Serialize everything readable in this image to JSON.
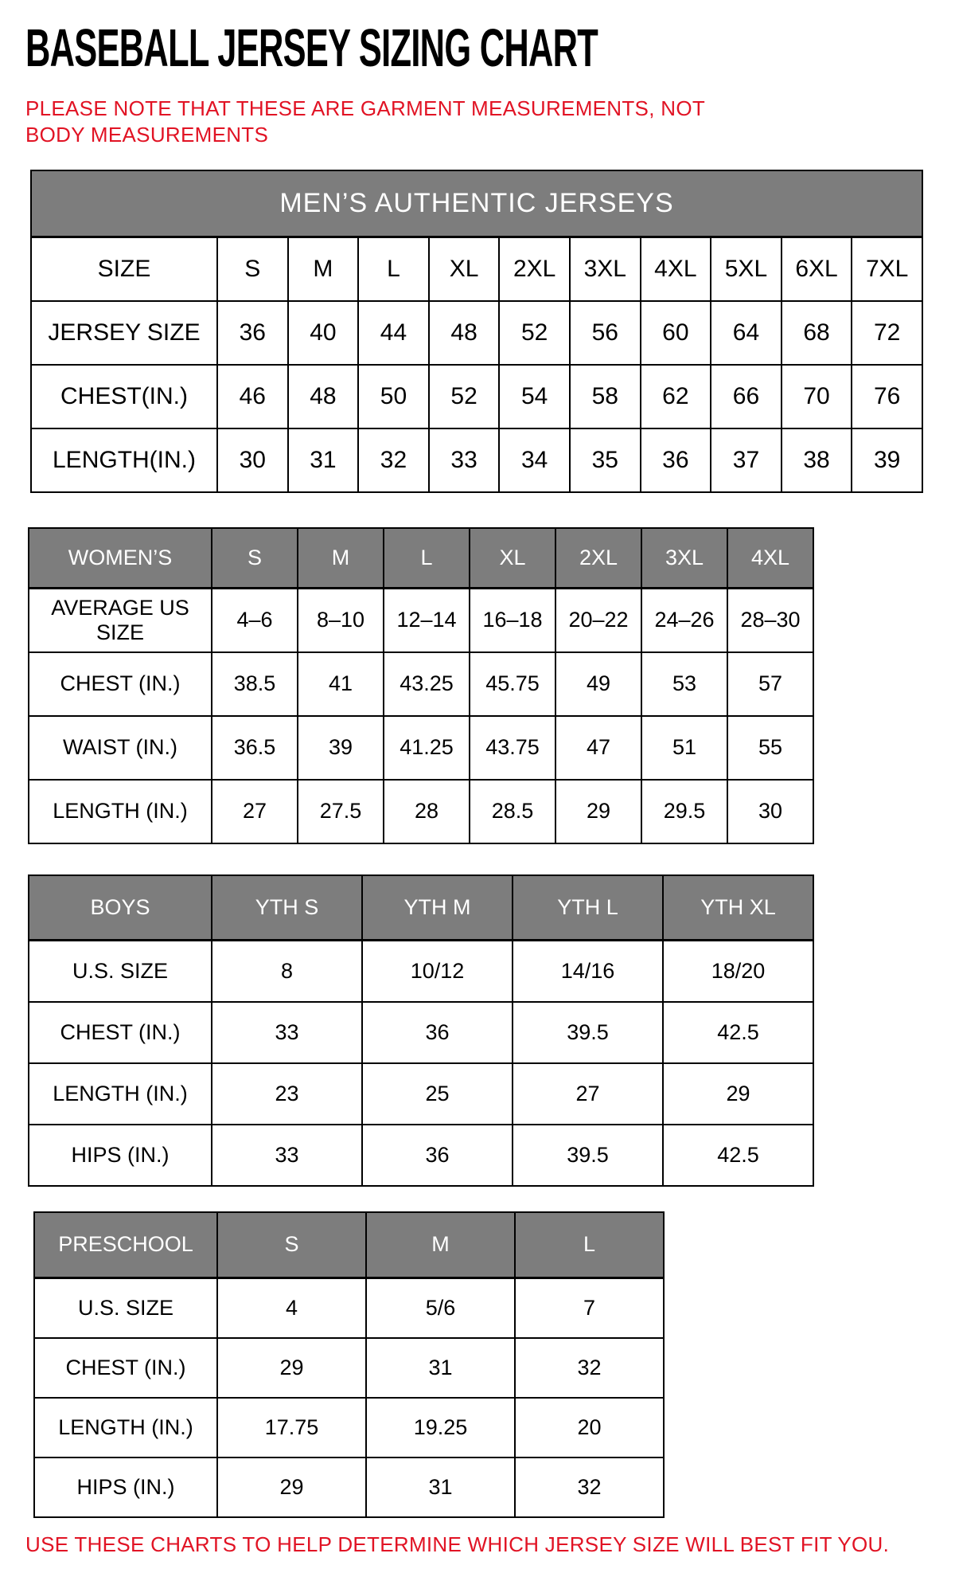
{
  "page": {
    "title": "BASEBALL JERSEY SIZING CHART",
    "note": "PLEASE NOTE THAT THESE ARE GARMENT MEASUREMENTS, NOT BODY MEASUREMENTS",
    "footer": "USE THESE CHARTS TO HELP DETERMINE WHICH JERSEY SIZE WILL BEST FIT YOU.",
    "colors": {
      "accent_red": "#e11324",
      "header_gray": "#7d7d7d",
      "header_text": "#ffffff",
      "table_text": "#000000"
    }
  },
  "tables": [
    {
      "id": "mens",
      "banner": "MEN’S AUTHENTIC JERSEYS",
      "header_row": [
        "SIZE",
        "S",
        "M",
        "L",
        "XL",
        "2XL",
        "3XL",
        "4XL",
        "5XL",
        "6XL",
        "7XL"
      ],
      "rows": [
        {
          "label": "JERSEY SIZE",
          "values": [
            "36",
            "40",
            "44",
            "48",
            "52",
            "56",
            "60",
            "64",
            "68",
            "72"
          ]
        },
        {
          "label": "CHEST(IN.)",
          "values": [
            "46",
            "48",
            "50",
            "52",
            "54",
            "58",
            "62",
            "66",
            "70",
            "76"
          ]
        },
        {
          "label": "LENGTH(IN.)",
          "values": [
            "30",
            "31",
            "32",
            "33",
            "34",
            "35",
            "36",
            "37",
            "38",
            "39"
          ]
        }
      ]
    },
    {
      "id": "womens",
      "banner": null,
      "header_row": [
        "WOMEN’S",
        "S",
        "M",
        "L",
        "XL",
        "2XL",
        "3XL",
        "4XL"
      ],
      "rows": [
        {
          "label": "AVERAGE US SIZE",
          "values": [
            "4–6",
            "8–10",
            "12–14",
            "16–18",
            "20–22",
            "24–26",
            "28–30"
          ]
        },
        {
          "label": "CHEST (IN.)",
          "values": [
            "38.5",
            "41",
            "43.25",
            "45.75",
            "49",
            "53",
            "57"
          ]
        },
        {
          "label": "WAIST (IN.)",
          "values": [
            "36.5",
            "39",
            "41.25",
            "43.75",
            "47",
            "51",
            "55"
          ]
        },
        {
          "label": "LENGTH (IN.)",
          "values": [
            "27",
            "27.5",
            "28",
            "28.5",
            "29",
            "29.5",
            "30"
          ]
        }
      ]
    },
    {
      "id": "boys",
      "banner": null,
      "header_row": [
        "BOYS",
        "YTH S",
        "YTH M",
        "YTH L",
        "YTH XL"
      ],
      "rows": [
        {
          "label": "U.S. SIZE",
          "values": [
            "8",
            "10/12",
            "14/16",
            "18/20"
          ]
        },
        {
          "label": "CHEST (IN.)",
          "values": [
            "33",
            "36",
            "39.5",
            "42.5"
          ]
        },
        {
          "label": "LENGTH (IN.)",
          "values": [
            "23",
            "25",
            "27",
            "29"
          ]
        },
        {
          "label": "HIPS (IN.)",
          "values": [
            "33",
            "36",
            "39.5",
            "42.5"
          ]
        }
      ]
    },
    {
      "id": "preschool",
      "banner": null,
      "header_row": [
        "PRESCHOOL",
        "S",
        "M",
        "L"
      ],
      "rows": [
        {
          "label": "U.S. SIZE",
          "values": [
            "4",
            "5/6",
            "7"
          ]
        },
        {
          "label": "CHEST (IN.)",
          "values": [
            "29",
            "31",
            "32"
          ]
        },
        {
          "label": "LENGTH (IN.)",
          "values": [
            "17.75",
            "19.25",
            "20"
          ]
        },
        {
          "label": "HIPS (IN.)",
          "values": [
            "29",
            "31",
            "32"
          ]
        }
      ]
    }
  ]
}
